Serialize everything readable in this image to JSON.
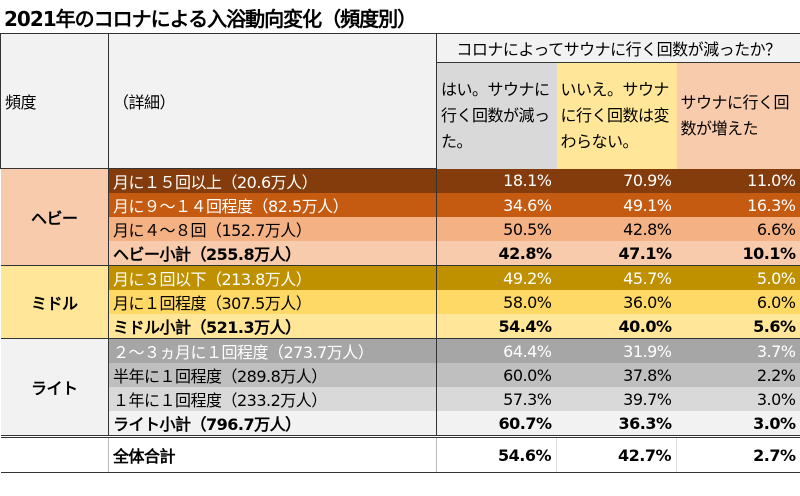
{
  "title": "2021年のコロナによる入浴動向変化（頻度別）",
  "header": {
    "col_freq": "頻度",
    "col_detail": "（詳細）",
    "question": "コロナによってサウナに行く回数が減ったか？",
    "answers": [
      "はい。サウナに行く回数が減った。",
      "いいえ。サウナに行く回数は変わらない。",
      "サウナに行く回数が増えた"
    ]
  },
  "colors": {
    "heavy": "#f8cbad",
    "middle": "#ffe699",
    "light": "#f2f2f2"
  },
  "groups": [
    {
      "name": "ヘビー",
      "rows": [
        {
          "label": "月に１５回以上（20.6万人）",
          "values": [
            "18.1%",
            "70.9%",
            "11.0%"
          ]
        },
        {
          "label": "月に９～１４回程度（82.5万人）",
          "values": [
            "34.6%",
            "49.1%",
            "16.3%"
          ]
        },
        {
          "label": "月に４～８回（152.7万人）",
          "values": [
            "50.5%",
            "42.8%",
            "6.6%"
          ]
        },
        {
          "label": "ヘビー小計（255.8万人）",
          "values": [
            "42.8%",
            "47.1%",
            "10.1%"
          ]
        }
      ]
    },
    {
      "name": "ミドル",
      "rows": [
        {
          "label": "月に３回以下（213.8万人）",
          "values": [
            "49.2%",
            "45.7%",
            "5.0%"
          ]
        },
        {
          "label": "月に１回程度（307.5万人）",
          "values": [
            "58.0%",
            "36.0%",
            "6.0%"
          ]
        },
        {
          "label": "ミドル小計（521.3万人）",
          "values": [
            "54.4%",
            "40.0%",
            "5.6%"
          ]
        }
      ]
    },
    {
      "name": "ライト",
      "rows": [
        {
          "label": "２～３ヵ月に１回程度（273.7万人）",
          "values": [
            "64.4%",
            "31.9%",
            "3.7%"
          ]
        },
        {
          "label": "半年に１回程度（289.8万人）",
          "values": [
            "60.0%",
            "37.8%",
            "2.2%"
          ]
        },
        {
          "label": "１年に１回程度（233.2万人）",
          "values": [
            "57.3%",
            "39.7%",
            "3.0%"
          ]
        },
        {
          "label": "ライト小計（796.7万人）",
          "values": [
            "60.7%",
            "36.3%",
            "3.0%"
          ]
        }
      ]
    }
  ],
  "total": {
    "label": "全体合計",
    "values": [
      "54.6%",
      "42.7%",
      "2.7%"
    ]
  }
}
